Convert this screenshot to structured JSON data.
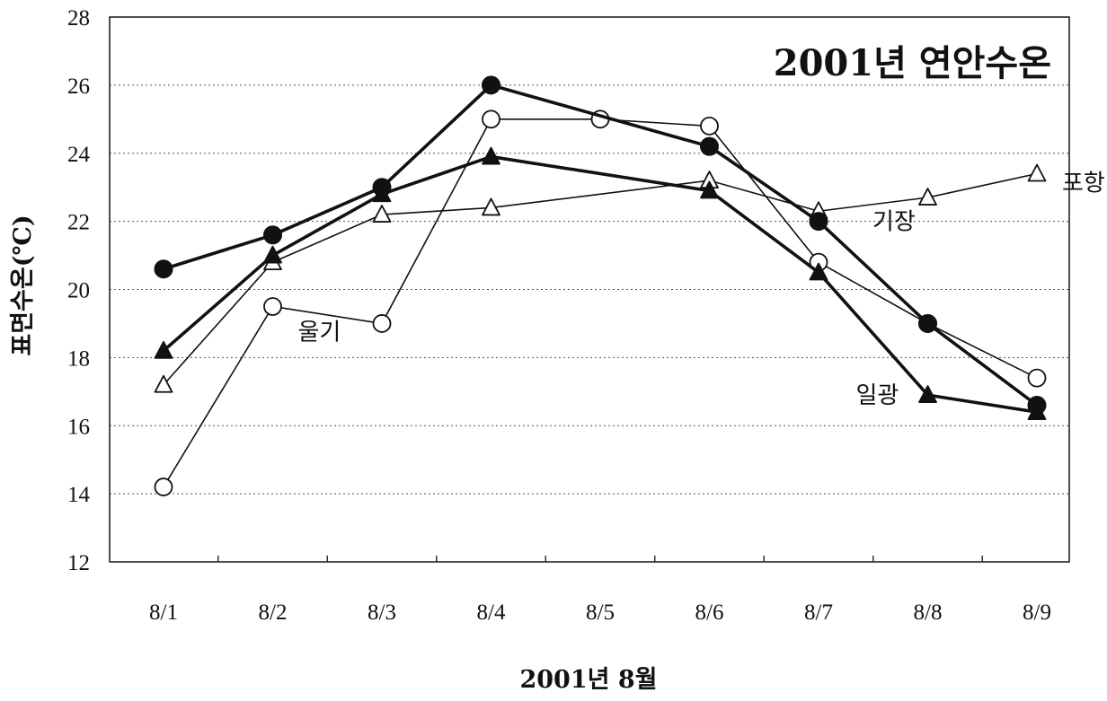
{
  "chart_data": {
    "type": "line",
    "title": "2001년 연안수온",
    "xlabel": "2001년 8월",
    "ylabel": "표면수온(℃)",
    "categories": [
      "8/1",
      "8/2",
      "8/3",
      "8/4",
      "8/5",
      "8/6",
      "8/7",
      "8/8",
      "8/9"
    ],
    "ylim": [
      12,
      28
    ],
    "yticks": [
      12,
      14,
      16,
      18,
      20,
      22,
      24,
      26,
      28
    ],
    "grid": true,
    "series": [
      {
        "name": "기장",
        "marker": "filled-circle",
        "line": "thick",
        "color": "#111111",
        "values": [
          20.6,
          21.6,
          23.0,
          26.0,
          null,
          24.2,
          22.0,
          19.0,
          16.6
        ]
      },
      {
        "name": "울기",
        "marker": "open-circle",
        "line": "thin",
        "color": "#111111",
        "values": [
          14.2,
          19.5,
          19.0,
          25.0,
          25.0,
          24.8,
          20.8,
          19.0,
          17.4
        ]
      },
      {
        "name": "포항",
        "marker": "open-triangle",
        "line": "thin",
        "color": "#111111",
        "values": [
          17.2,
          20.8,
          22.2,
          22.4,
          null,
          23.2,
          22.3,
          22.7,
          23.4
        ]
      },
      {
        "name": "일광",
        "marker": "filled-triangle",
        "line": "thick",
        "color": "#111111",
        "values": [
          18.2,
          21.0,
          22.8,
          23.9,
          null,
          22.9,
          20.5,
          16.9,
          16.4
        ]
      }
    ],
    "series_label_anchors": [
      {
        "series": "포항",
        "index": 8
      },
      {
        "series": "기장",
        "index": 6
      },
      {
        "series": "울기",
        "index": 1
      },
      {
        "series": "일광",
        "index": 7
      }
    ]
  }
}
